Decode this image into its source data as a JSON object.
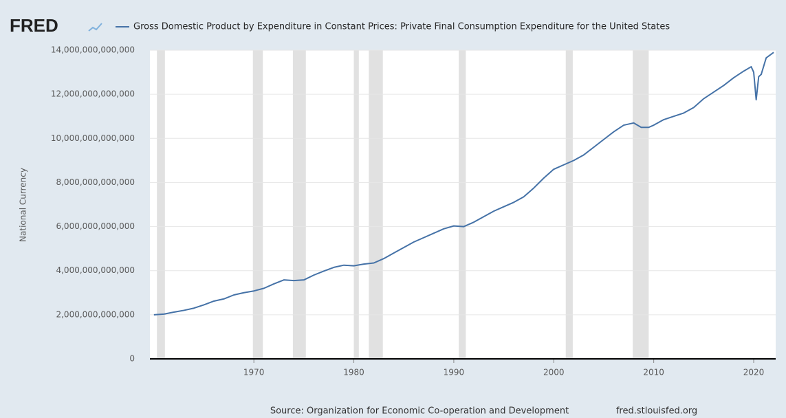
{
  "chart_data": {
    "type": "line",
    "logo": "FRED",
    "y_label": "National Currency",
    "source": "Source: Organization for Economic Co-operation and Development",
    "site": "fred.stlouisfed.org",
    "x": [
      1960,
      1961,
      1962,
      1963,
      1964,
      1965,
      1966,
      1967,
      1968,
      1969,
      1970,
      1971,
      1972,
      1973,
      1974,
      1975,
      1976,
      1977,
      1978,
      1979,
      1980,
      1981,
      1982,
      1983,
      1984,
      1985,
      1986,
      1987,
      1988,
      1989,
      1990,
      1991,
      1992,
      1993,
      1994,
      1995,
      1996,
      1997,
      1998,
      1999,
      2000,
      2001,
      2002,
      2003,
      2004,
      2005,
      2006,
      2007,
      2008,
      2008.75,
      2009.5,
      2010,
      2011,
      2012,
      2013,
      2014,
      2015,
      2016,
      2017,
      2018,
      2019,
      2019.75,
      2020,
      2020.25,
      2020.5,
      2020.75,
      2021.25,
      2022
    ],
    "series": [
      {
        "name": "Gross Domestic Product by Expenditure in Constant Prices: Private Final Consumption Expenditure for the United States",
        "color": "#4572a7",
        "values": [
          2000000000000,
          2030000000000,
          2120000000000,
          2200000000000,
          2300000000000,
          2450000000000,
          2620000000000,
          2720000000000,
          2900000000000,
          3000000000000,
          3080000000000,
          3200000000000,
          3400000000000,
          3580000000000,
          3550000000000,
          3580000000000,
          3800000000000,
          3980000000000,
          4150000000000,
          4250000000000,
          4220000000000,
          4300000000000,
          4350000000000,
          4550000000000,
          4800000000000,
          5050000000000,
          5300000000000,
          5500000000000,
          5700000000000,
          5900000000000,
          6030000000000,
          6000000000000,
          6200000000000,
          6450000000000,
          6700000000000,
          6900000000000,
          7100000000000,
          7350000000000,
          7750000000000,
          8200000000000,
          8600000000000,
          8800000000000,
          9000000000000,
          9250000000000,
          9600000000000,
          9950000000000,
          10300000000000,
          10600000000000,
          10700000000000,
          10500000000000,
          10500000000000,
          10600000000000,
          10850000000000,
          11000000000000,
          11150000000000,
          11400000000000,
          11800000000000,
          12100000000000,
          12400000000000,
          12750000000000,
          13050000000000,
          13250000000000,
          13000000000000,
          11750000000000,
          12800000000000,
          12900000000000,
          13650000000000,
          13900000000000
        ]
      }
    ],
    "recessions": [
      [
        1960.3,
        1961.1
      ],
      [
        1969.9,
        1970.9
      ],
      [
        1973.9,
        1975.2
      ],
      [
        1980.0,
        1980.5
      ],
      [
        1981.5,
        1982.9
      ],
      [
        1990.5,
        1991.2
      ],
      [
        2001.2,
        2001.9
      ],
      [
        2007.9,
        2009.5
      ]
    ],
    "recession_color": "#e1e1e1",
    "xlim": [
      1959.6,
      2022.2
    ],
    "xticks": [
      1970,
      1980,
      1990,
      2000,
      2010,
      2020
    ],
    "ylim": [
      0,
      14000000000000
    ],
    "yticks": [
      0,
      {
        "value": 2000000000000,
        "label": "2,000,000,000,000"
      },
      {
        "value": 4000000000000,
        "label": "4,000,000,000,000"
      },
      {
        "value": 6000000000000,
        "label": "6,000,000,000,000"
      },
      {
        "value": 8000000000000,
        "label": "8,000,000,000,000"
      },
      {
        "value": 10000000000000,
        "label": "10,000,000,000,000"
      },
      {
        "value": 12000000000000,
        "label": "12,000,000,000,000"
      },
      {
        "value": 14000000000000,
        "label": "14,000,000,000,000"
      }
    ],
    "grid": true
  }
}
